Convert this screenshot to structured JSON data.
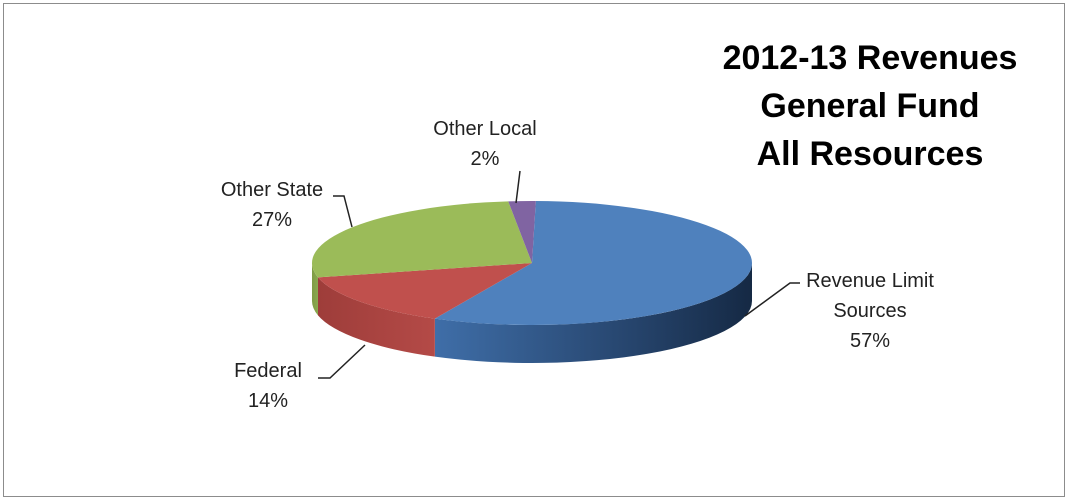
{
  "chart_data": {
    "type": "pie",
    "title_lines": [
      "2012-13 Revenues",
      "General Fund",
      "All Resources"
    ],
    "slices": [
      {
        "label_lines": [
          "Revenue Limit",
          "Sources"
        ],
        "percent_label": "57%",
        "value": 57,
        "color": "#4f81bd"
      },
      {
        "label_lines": [
          "Federal"
        ],
        "percent_label": "14%",
        "value": 14,
        "color": "#c0504d"
      },
      {
        "label_lines": [
          "Other State"
        ],
        "percent_label": "27%",
        "value": 27,
        "color": "#9bbb59"
      },
      {
        "label_lines": [
          "Other Local"
        ],
        "percent_label": "2%",
        "value": 2,
        "color": "#8064a2"
      }
    ],
    "legend": "none",
    "style": "3d-pie"
  }
}
